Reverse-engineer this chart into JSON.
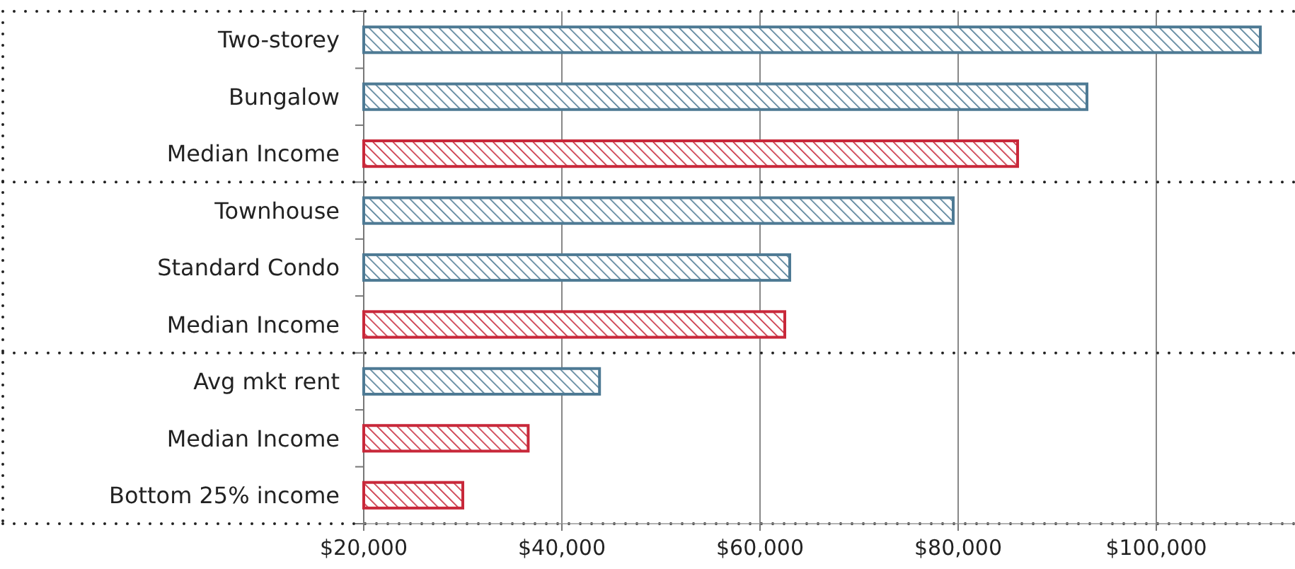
{
  "chart_data": {
    "type": "bar",
    "orientation": "horizontal",
    "categories": [
      "Two-storey",
      "Bungalow",
      "Median Income",
      "Townhouse",
      "Standard Condo",
      "Median Income",
      "Avg mkt rent",
      "Median Income",
      "Bottom 25% income"
    ],
    "values": [
      110500,
      93000,
      86000,
      79500,
      63000,
      62500,
      43800,
      36600,
      30000
    ],
    "colors": [
      "#4e7a94",
      "#4e7a94",
      "#c8283a",
      "#4e7a94",
      "#4e7a94",
      "#c8283a",
      "#4e7a94",
      "#c8283a",
      "#c8283a"
    ],
    "xlim": [
      20000,
      114000
    ],
    "xticks": [
      {
        "value": 20000,
        "label": "$20,000"
      },
      {
        "value": 40000,
        "label": "$40,000"
      },
      {
        "value": 60000,
        "label": "$60,000"
      },
      {
        "value": 80000,
        "label": "$80,000"
      },
      {
        "value": 100000,
        "label": "$100,000"
      }
    ],
    "grid": "x"
  }
}
